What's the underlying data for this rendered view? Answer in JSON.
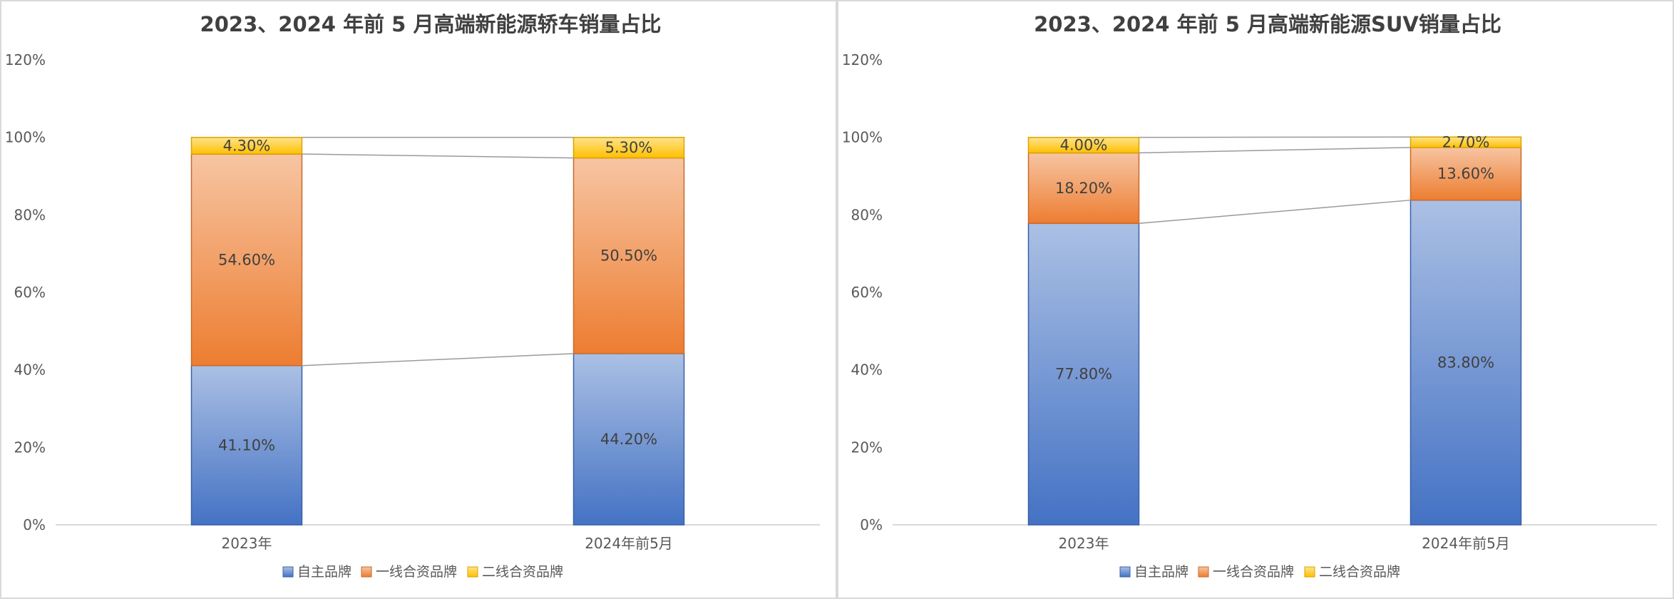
{
  "chart_data": [
    {
      "type": "bar",
      "stacked": true,
      "title": "2023、2024 年前 5 月高端新能源轿车销量占比",
      "categories": [
        "2023年",
        "2024年前5月"
      ],
      "y_ticks": [
        "0%",
        "20%",
        "40%",
        "60%",
        "80%",
        "100%",
        "120%"
      ],
      "ylim": [
        0,
        120
      ],
      "series": [
        {
          "name": "自主品牌",
          "values": [
            41.1,
            44.2
          ],
          "labels": [
            "41.10%",
            "44.20%"
          ],
          "color": "#4472c4"
        },
        {
          "name": "一线合资品牌",
          "values": [
            54.6,
            50.5
          ],
          "labels": [
            "54.60%",
            "50.50%"
          ],
          "color": "#ed7d31"
        },
        {
          "name": "二线合资品牌",
          "values": [
            4.3,
            5.3
          ],
          "labels": [
            "4.30%",
            "5.30%"
          ],
          "color": "#ffc000"
        }
      ],
      "legend_position": "bottom",
      "series_lines": true
    },
    {
      "type": "bar",
      "stacked": true,
      "title": "2023、2024 年前 5 月高端新能源SUV销量占比",
      "categories": [
        "2023年",
        "2024年前5月"
      ],
      "y_ticks": [
        "0%",
        "20%",
        "40%",
        "60%",
        "80%",
        "100%",
        "120%"
      ],
      "ylim": [
        0,
        120
      ],
      "series": [
        {
          "name": "自主品牌",
          "values": [
            77.8,
            83.8
          ],
          "labels": [
            "77.80%",
            "83.80%"
          ],
          "color": "#4472c4"
        },
        {
          "name": "一线合资品牌",
          "values": [
            18.2,
            13.6
          ],
          "labels": [
            "18.20%",
            "13.60%"
          ],
          "color": "#ed7d31"
        },
        {
          "name": "二线合资品牌",
          "values": [
            4.0,
            2.7
          ],
          "labels": [
            "4.00%",
            "2.70%"
          ],
          "color": "#ffc000"
        }
      ],
      "legend_position": "bottom",
      "series_lines": true
    }
  ]
}
